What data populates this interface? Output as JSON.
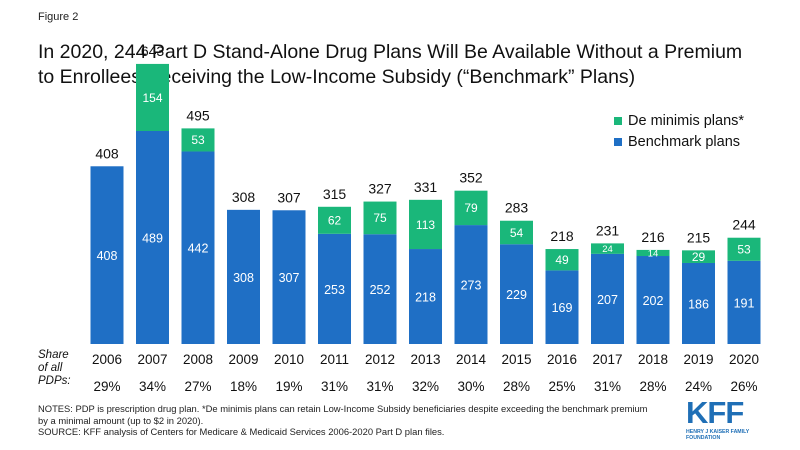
{
  "figure_label": "Figure 2",
  "title_lines": [
    "In 2020, 244 Part D Stand-Alone Drug Plans Will Be Available Without a Premium",
    "to Enrollees Receiving the Low-Income Subsidy (“Benchmark” Plans)"
  ],
  "share_label_lines": [
    "Share",
    "of all",
    "PDPs:"
  ],
  "notes_lines": [
    "NOTES: PDP is prescription drug plan. *De minimis plans can retain Low-Income Subsidy beneficiaries despite exceeding the benchmark premium",
    "by a minimal amount (up to $2 in 2020).",
    "SOURCE: KFF analysis of Centers for Medicare & Medicaid Services 2006-2020 Part D plan files."
  ],
  "logo": {
    "text": "KFF",
    "sub": "HENRY J KAISER FAMILY FOUNDATION"
  },
  "colors": {
    "benchmark": "#1f6fc5",
    "de_minimis": "#1ab77a"
  },
  "chart_data": {
    "type": "bar",
    "stacked": true,
    "categories": [
      "2006",
      "2007",
      "2008",
      "2009",
      "2010",
      "2011",
      "2012",
      "2013",
      "2014",
      "2015",
      "2016",
      "2017",
      "2018",
      "2019",
      "2020"
    ],
    "series": [
      {
        "name": "Benchmark plans",
        "values": [
          408,
          489,
          442,
          308,
          307,
          253,
          252,
          218,
          273,
          229,
          169,
          207,
          202,
          186,
          191
        ]
      },
      {
        "name": "De minimis plans*",
        "values": [
          0,
          154,
          53,
          0,
          0,
          62,
          75,
          113,
          79,
          54,
          49,
          24,
          14,
          29,
          53
        ]
      }
    ],
    "totals": [
      408,
      643,
      495,
      308,
      307,
      315,
      327,
      331,
      352,
      283,
      218,
      231,
      216,
      215,
      244
    ],
    "share_of_all_pdps": [
      "29%",
      "34%",
      "27%",
      "18%",
      "19%",
      "31%",
      "31%",
      "32%",
      "30%",
      "28%",
      "25%",
      "31%",
      "28%",
      "24%",
      "26%"
    ],
    "legend": [
      "De minimis plans*",
      "Benchmark plans"
    ],
    "legend_position": "top-right",
    "ylim": [
      0,
      680
    ],
    "grid": false
  }
}
